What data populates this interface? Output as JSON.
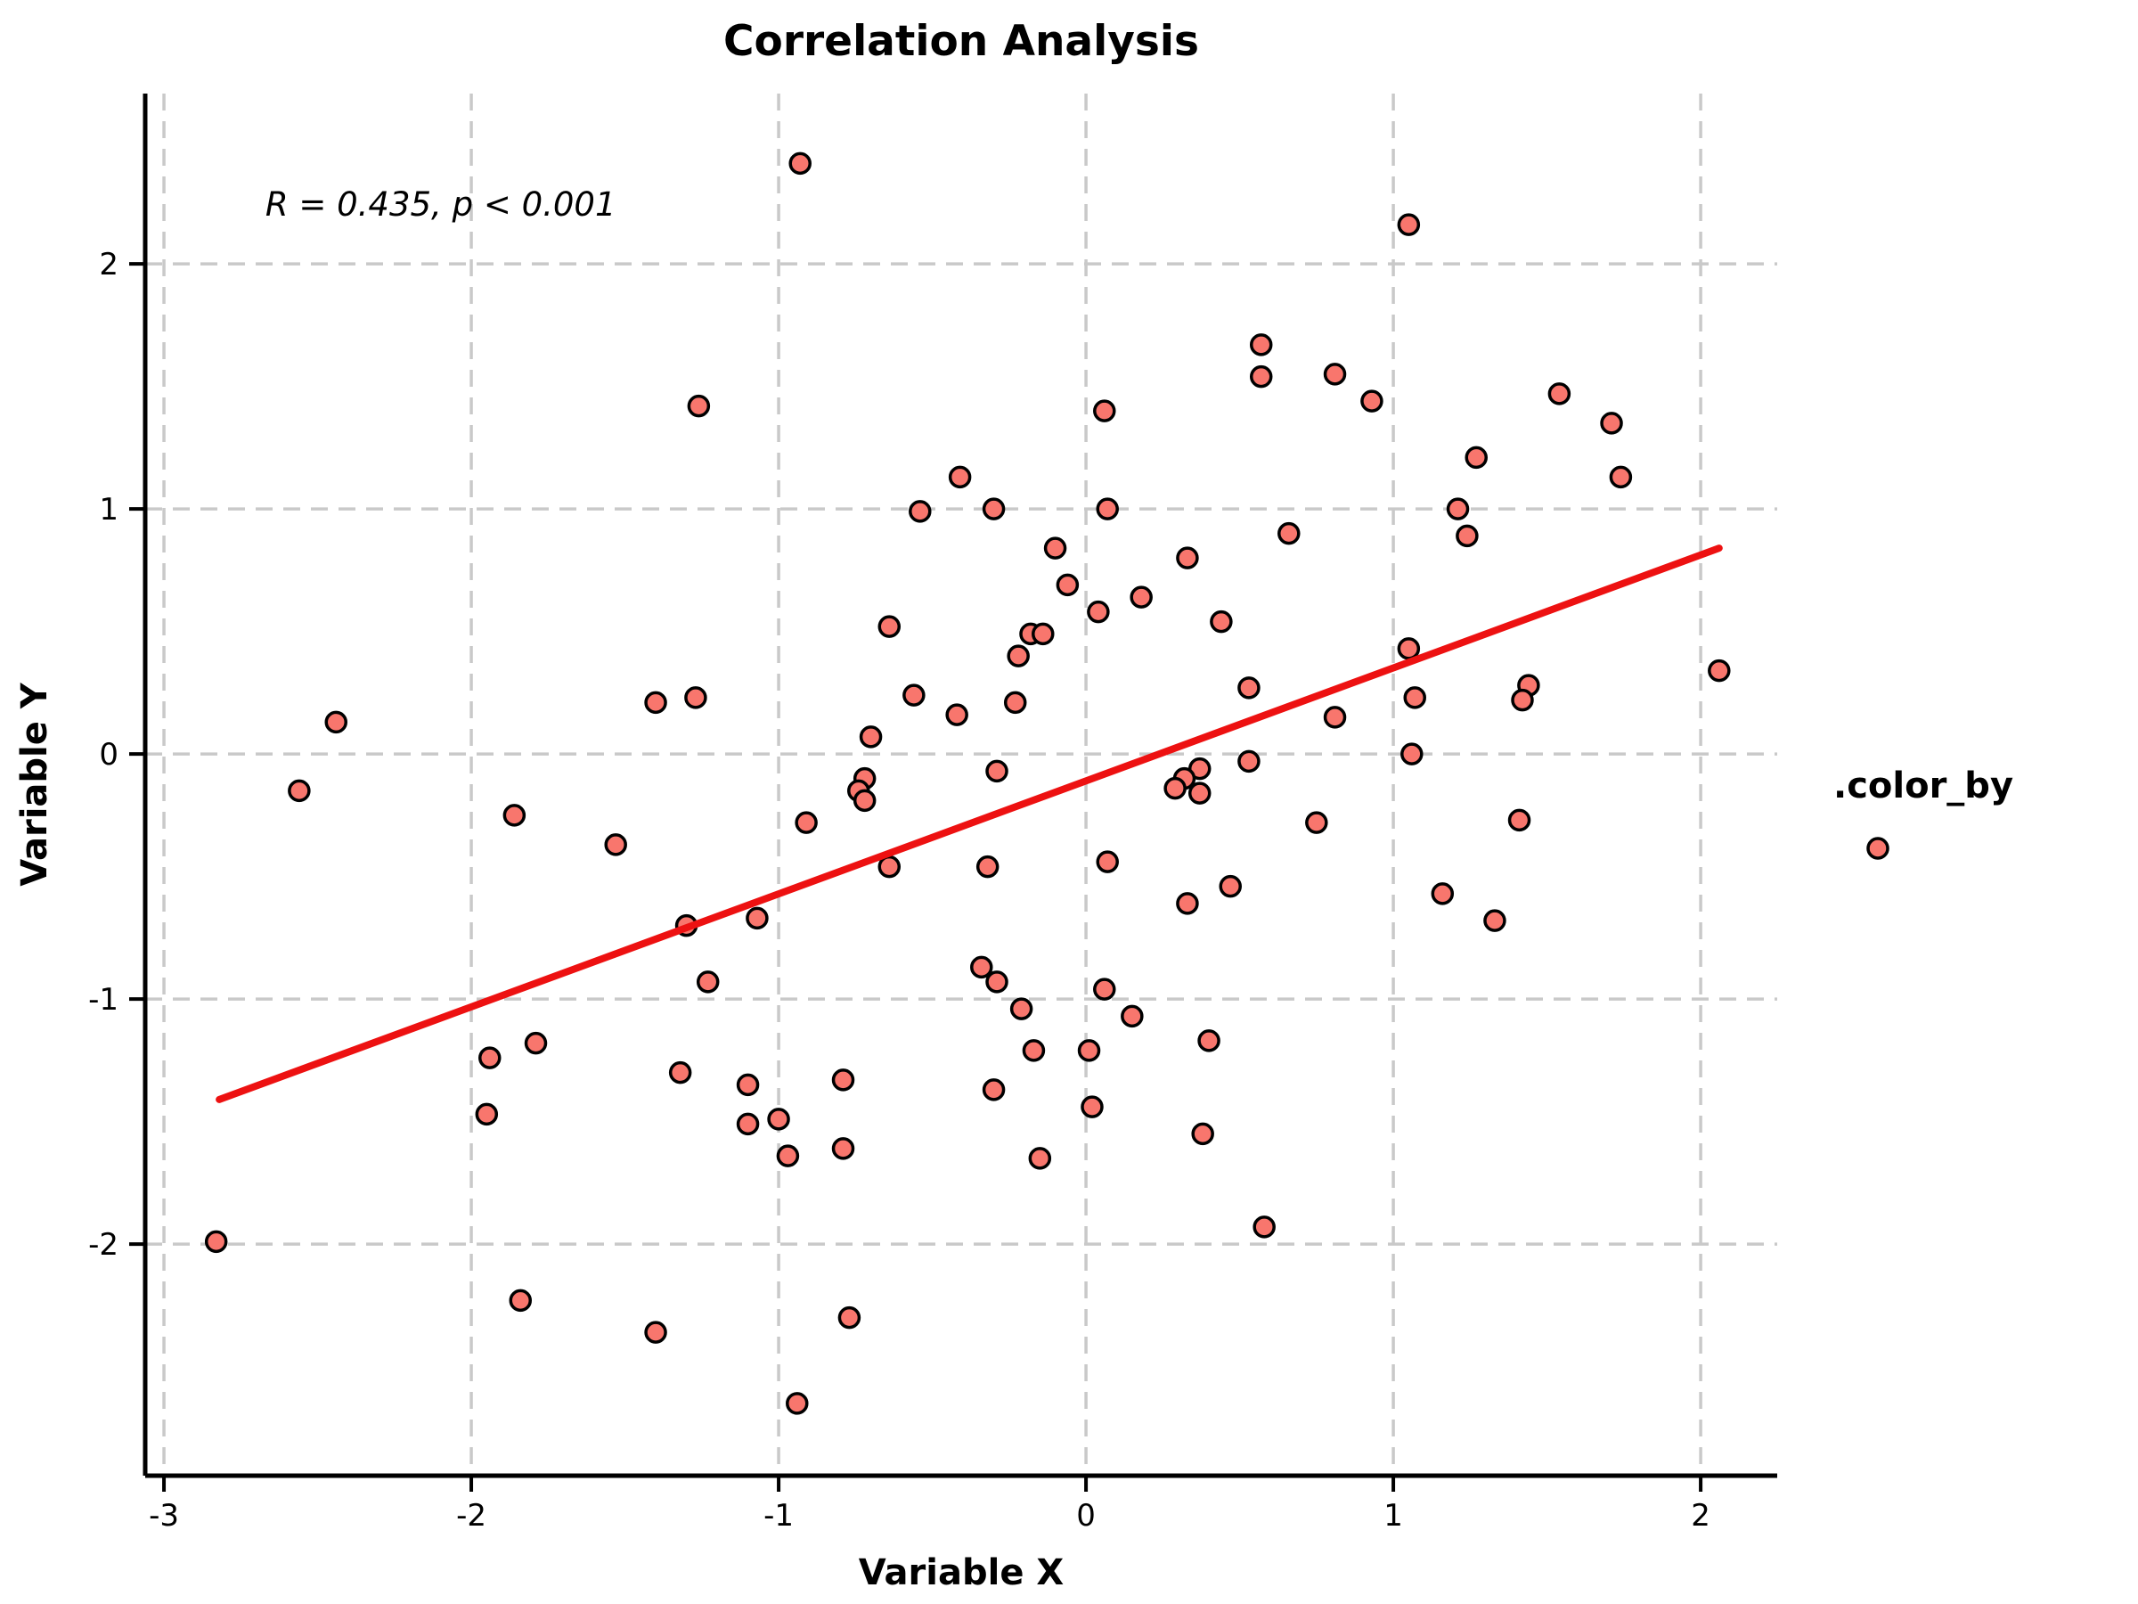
{
  "colors": {
    "background": "#ffffff",
    "grid": "#c9c9c9",
    "axis": "#000000",
    "point_fill": "#F8766D",
    "point_edge": "#000000",
    "trend_line": "#ED1111",
    "text": "#000000"
  },
  "chart_data": {
    "type": "scatter",
    "title": "Correlation Analysis",
    "xlabel": "Variable X",
    "ylabel": "Variable Y",
    "annotation": {
      "text": "R = 0.435, p < 0.001",
      "x": -2.67,
      "y": 2.24
    },
    "legend": {
      "title": ".color_by",
      "position": "right",
      "marker": "circle"
    },
    "grid": true,
    "grid_style": "dashed",
    "xlim": [
      -3.061,
      2.249
    ],
    "ylim": [
      -2.945,
      2.695
    ],
    "x_tick_values": [
      -3,
      -2,
      -1,
      0,
      1,
      2
    ],
    "x_tick_labels": [
      "-3",
      "-2",
      "-1",
      "0",
      "1",
      "2"
    ],
    "y_tick_values": [
      -2,
      -1,
      0,
      1,
      2
    ],
    "y_tick_labels": [
      "-2",
      "-1",
      "0",
      "1",
      "2"
    ],
    "trend_line": {
      "x1": -2.82,
      "y1": -1.41,
      "x2": 2.06,
      "y2": 0.84
    },
    "point_style": {
      "radius": 11,
      "stroke_width": 3.5
    },
    "points": [
      [
        -0.93,
        2.41
      ],
      [
        -1.26,
        1.42
      ],
      [
        -0.41,
        1.13
      ],
      [
        -0.54,
        0.99
      ],
      [
        0.57,
        1.67
      ],
      [
        0.57,
        1.54
      ],
      [
        0.81,
        1.55
      ],
      [
        0.93,
        1.44
      ],
      [
        0.06,
        1.4
      ],
      [
        -0.3,
        1.0
      ],
      [
        0.07,
        1.0
      ],
      [
        0.66,
        0.9
      ],
      [
        1.05,
        2.16
      ],
      [
        1.54,
        1.47
      ],
      [
        1.71,
        1.35
      ],
      [
        1.27,
        1.21
      ],
      [
        1.74,
        1.13
      ],
      [
        1.21,
        1.0
      ],
      [
        1.24,
        0.89
      ],
      [
        -2.44,
        0.13
      ],
      [
        -2.56,
        -0.15
      ],
      [
        -1.86,
        -0.25
      ],
      [
        -0.64,
        0.52
      ],
      [
        -1.4,
        0.21
      ],
      [
        -1.27,
        0.23
      ],
      [
        -0.56,
        0.24
      ],
      [
        -0.42,
        0.16
      ],
      [
        -0.7,
        0.07
      ],
      [
        -0.72,
        -0.1
      ],
      [
        -0.74,
        -0.15
      ],
      [
        -0.72,
        -0.19
      ],
      [
        -0.91,
        -0.28
      ],
      [
        -1.53,
        -0.37
      ],
      [
        -0.64,
        -0.46
      ],
      [
        -1.07,
        -0.67
      ],
      [
        -1.3,
        -0.7
      ],
      [
        -1.23,
        -0.93
      ],
      [
        -0.1,
        0.84
      ],
      [
        0.33,
        0.8
      ],
      [
        -0.06,
        0.69
      ],
      [
        0.18,
        0.64
      ],
      [
        0.04,
        0.58
      ],
      [
        0.44,
        0.54
      ],
      [
        -0.18,
        0.49
      ],
      [
        -0.14,
        0.49
      ],
      [
        -0.22,
        0.4
      ],
      [
        -0.23,
        0.21
      ],
      [
        0.53,
        0.27
      ],
      [
        0.81,
        0.15
      ],
      [
        0.53,
        -0.03
      ],
      [
        -0.29,
        -0.07
      ],
      [
        0.37,
        -0.06
      ],
      [
        0.32,
        -0.1
      ],
      [
        0.29,
        -0.14
      ],
      [
        0.37,
        -0.16
      ],
      [
        0.75,
        -0.28
      ],
      [
        0.07,
        -0.44
      ],
      [
        -0.32,
        -0.46
      ],
      [
        0.47,
        -0.54
      ],
      [
        0.33,
        -0.61
      ],
      [
        -0.34,
        -0.87
      ],
      [
        -0.29,
        -0.93
      ],
      [
        1.05,
        0.43
      ],
      [
        2.06,
        0.34
      ],
      [
        1.07,
        0.23
      ],
      [
        1.44,
        0.28
      ],
      [
        1.42,
        0.22
      ],
      [
        1.06,
        0.0
      ],
      [
        1.41,
        -0.27
      ],
      [
        1.16,
        -0.57
      ],
      [
        1.33,
        -0.68
      ],
      [
        -1.94,
        -1.24
      ],
      [
        -1.79,
        -1.18
      ],
      [
        -1.95,
        -1.47
      ],
      [
        -2.83,
        -1.99
      ],
      [
        -1.84,
        -2.23
      ],
      [
        -1.32,
        -1.3
      ],
      [
        -1.1,
        -1.35
      ],
      [
        -1.1,
        -1.51
      ],
      [
        -1.0,
        -1.49
      ],
      [
        -0.79,
        -1.33
      ],
      [
        -0.97,
        -1.64
      ],
      [
        -0.79,
        -1.61
      ],
      [
        -1.4,
        -2.36
      ],
      [
        -0.77,
        -2.3
      ],
      [
        -0.94,
        -2.65
      ],
      [
        0.06,
        -0.96
      ],
      [
        -0.21,
        -1.04
      ],
      [
        0.15,
        -1.07
      ],
      [
        -0.17,
        -1.21
      ],
      [
        0.01,
        -1.21
      ],
      [
        0.4,
        -1.17
      ],
      [
        -0.3,
        -1.37
      ],
      [
        0.02,
        -1.44
      ],
      [
        0.38,
        -1.55
      ],
      [
        -0.15,
        -1.65
      ],
      [
        0.58,
        -1.93
      ]
    ]
  }
}
